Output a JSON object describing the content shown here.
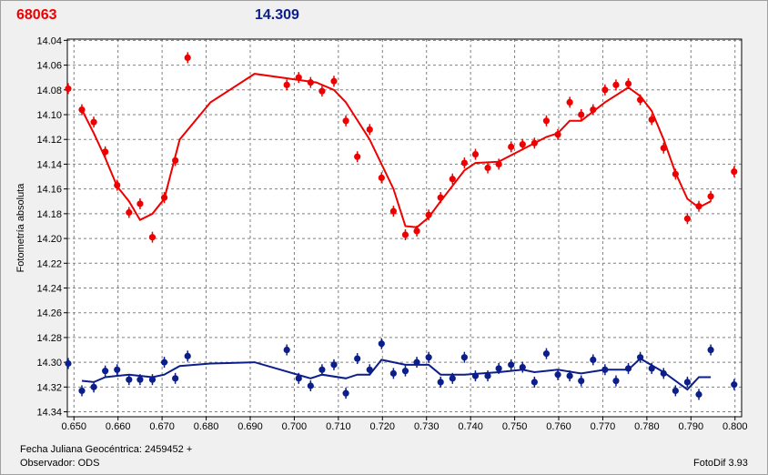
{
  "header": {
    "star_id": "68063",
    "magnitude": "14.309"
  },
  "footer": {
    "jd_label": "Fecha Juliana Geocéntrica: 2459452 +",
    "observer_label": "Observador: ODS",
    "software": "FotoDif 3.93"
  },
  "colors": {
    "red": "#ee0000",
    "blue": "#0b1e8a",
    "grid": "#808080",
    "plot_bg": "#ffffff"
  },
  "chart_data": {
    "type": "scatter",
    "ylabel": "Fotometría absoluta",
    "xlabel": "",
    "xlim": [
      0.6485,
      0.8015
    ],
    "ylim": [
      14.344,
      14.039
    ],
    "y_reversed": true,
    "grid": true,
    "x_ticks": [
      "0.650",
      "0.660",
      "0.670",
      "0.680",
      "0.690",
      "0.700",
      "0.710",
      "0.720",
      "0.730",
      "0.740",
      "0.750",
      "0.760",
      "0.770",
      "0.780",
      "0.790",
      "0.800"
    ],
    "y_ticks": [
      "14.04",
      "14.06",
      "14.08",
      "14.10",
      "14.12",
      "14.14",
      "14.16",
      "14.18",
      "14.20",
      "14.22",
      "14.24",
      "14.26",
      "14.28",
      "14.30",
      "14.32",
      "14.34"
    ],
    "series": [
      {
        "color": "#ee0000",
        "points": [
          [
            0.6487,
            14.079
          ],
          [
            0.6518,
            14.096
          ],
          [
            0.6545,
            14.106
          ],
          [
            0.6571,
            14.13
          ],
          [
            0.6598,
            14.157
          ],
          [
            0.6625,
            14.179
          ],
          [
            0.665,
            14.172
          ],
          [
            0.6678,
            14.199
          ],
          [
            0.6705,
            14.167
          ],
          [
            0.673,
            14.137
          ],
          [
            0.6758,
            14.054
          ],
          [
            0.6983,
            14.076
          ],
          [
            0.701,
            14.07
          ],
          [
            0.7037,
            14.074
          ],
          [
            0.7063,
            14.081
          ],
          [
            0.709,
            14.073
          ],
          [
            0.7117,
            14.105
          ],
          [
            0.7143,
            14.134
          ],
          [
            0.7171,
            14.112
          ],
          [
            0.7198,
            14.151
          ],
          [
            0.7225,
            14.178
          ],
          [
            0.7252,
            14.197
          ],
          [
            0.7278,
            14.194
          ],
          [
            0.7305,
            14.181
          ],
          [
            0.7332,
            14.167
          ],
          [
            0.7359,
            14.152
          ],
          [
            0.7386,
            14.139
          ],
          [
            0.7411,
            14.132
          ],
          [
            0.7439,
            14.143
          ],
          [
            0.7464,
            14.14
          ],
          [
            0.7492,
            14.126
          ],
          [
            0.7518,
            14.124
          ],
          [
            0.7545,
            14.123
          ],
          [
            0.7572,
            14.105
          ],
          [
            0.7598,
            14.116
          ],
          [
            0.7625,
            14.09
          ],
          [
            0.7651,
            14.1
          ],
          [
            0.7678,
            14.096
          ],
          [
            0.7705,
            14.08
          ],
          [
            0.773,
            14.076
          ],
          [
            0.7758,
            14.075
          ],
          [
            0.7785,
            14.088
          ],
          [
            0.7811,
            14.104
          ],
          [
            0.7838,
            14.127
          ],
          [
            0.7865,
            14.148
          ],
          [
            0.7892,
            14.184
          ],
          [
            0.7918,
            14.174
          ],
          [
            0.7945,
            14.166
          ],
          [
            0.7998,
            14.146
          ]
        ],
        "trend": [
          [
            0.6518,
            14.096
          ],
          [
            0.6545,
            14.115
          ],
          [
            0.6571,
            14.135
          ],
          [
            0.6598,
            14.158
          ],
          [
            0.6625,
            14.17
          ],
          [
            0.665,
            14.185
          ],
          [
            0.6678,
            14.18
          ],
          [
            0.6705,
            14.168
          ],
          [
            0.674,
            14.12
          ],
          [
            0.681,
            14.09
          ],
          [
            0.691,
            14.067
          ],
          [
            0.705,
            14.074
          ],
          [
            0.709,
            14.08
          ],
          [
            0.7117,
            14.09
          ],
          [
            0.7171,
            14.12
          ],
          [
            0.7225,
            14.16
          ],
          [
            0.7252,
            14.19
          ],
          [
            0.7278,
            14.191
          ],
          [
            0.7305,
            14.183
          ],
          [
            0.7332,
            14.17
          ],
          [
            0.7386,
            14.145
          ],
          [
            0.7411,
            14.139
          ],
          [
            0.7464,
            14.138
          ],
          [
            0.7518,
            14.128
          ],
          [
            0.7572,
            14.118
          ],
          [
            0.7598,
            14.115
          ],
          [
            0.7625,
            14.105
          ],
          [
            0.7651,
            14.105
          ],
          [
            0.7705,
            14.09
          ],
          [
            0.7758,
            14.078
          ],
          [
            0.7785,
            14.085
          ],
          [
            0.7811,
            14.097
          ],
          [
            0.7838,
            14.12
          ],
          [
            0.7865,
            14.147
          ],
          [
            0.7892,
            14.168
          ],
          [
            0.7918,
            14.175
          ],
          [
            0.7945,
            14.17
          ]
        ]
      },
      {
        "color": "#0b1e8a",
        "points": [
          [
            0.6487,
            14.301
          ],
          [
            0.6518,
            14.323
          ],
          [
            0.6545,
            14.32
          ],
          [
            0.6571,
            14.307
          ],
          [
            0.6598,
            14.306
          ],
          [
            0.6625,
            14.314
          ],
          [
            0.665,
            14.314
          ],
          [
            0.6678,
            14.314
          ],
          [
            0.6705,
            14.3
          ],
          [
            0.673,
            14.313
          ],
          [
            0.6758,
            14.295
          ],
          [
            0.6983,
            14.29
          ],
          [
            0.701,
            14.313
          ],
          [
            0.7037,
            14.319
          ],
          [
            0.7063,
            14.306
          ],
          [
            0.709,
            14.302
          ],
          [
            0.7117,
            14.325
          ],
          [
            0.7143,
            14.297
          ],
          [
            0.7171,
            14.306
          ],
          [
            0.7198,
            14.285
          ],
          [
            0.7225,
            14.309
          ],
          [
            0.7252,
            14.307
          ],
          [
            0.7278,
            14.3
          ],
          [
            0.7305,
            14.296
          ],
          [
            0.7332,
            14.316
          ],
          [
            0.7359,
            14.313
          ],
          [
            0.7386,
            14.296
          ],
          [
            0.7411,
            14.311
          ],
          [
            0.7439,
            14.311
          ],
          [
            0.7464,
            14.305
          ],
          [
            0.7492,
            14.302
          ],
          [
            0.7518,
            14.304
          ],
          [
            0.7545,
            14.316
          ],
          [
            0.7572,
            14.293
          ],
          [
            0.7598,
            14.31
          ],
          [
            0.7625,
            14.311
          ],
          [
            0.7651,
            14.315
          ],
          [
            0.7678,
            14.298
          ],
          [
            0.7705,
            14.306
          ],
          [
            0.773,
            14.315
          ],
          [
            0.7758,
            14.305
          ],
          [
            0.7785,
            14.296
          ],
          [
            0.7811,
            14.305
          ],
          [
            0.7838,
            14.309
          ],
          [
            0.7865,
            14.323
          ],
          [
            0.7892,
            14.316
          ],
          [
            0.7918,
            14.326
          ],
          [
            0.7945,
            14.29
          ],
          [
            0.7998,
            14.318
          ]
        ],
        "trend": [
          [
            0.6518,
            14.315
          ],
          [
            0.6545,
            14.316
          ],
          [
            0.6571,
            14.312
          ],
          [
            0.6625,
            14.31
          ],
          [
            0.6678,
            14.312
          ],
          [
            0.6705,
            14.31
          ],
          [
            0.674,
            14.303
          ],
          [
            0.681,
            14.301
          ],
          [
            0.691,
            14.3
          ],
          [
            0.7037,
            14.313
          ],
          [
            0.7063,
            14.31
          ],
          [
            0.7117,
            14.313
          ],
          [
            0.7143,
            14.31
          ],
          [
            0.7171,
            14.31
          ],
          [
            0.7198,
            14.298
          ],
          [
            0.7225,
            14.3
          ],
          [
            0.7252,
            14.302
          ],
          [
            0.7305,
            14.302
          ],
          [
            0.7332,
            14.31
          ],
          [
            0.7386,
            14.31
          ],
          [
            0.7464,
            14.308
          ],
          [
            0.7518,
            14.306
          ],
          [
            0.7545,
            14.308
          ],
          [
            0.7598,
            14.306
          ],
          [
            0.7651,
            14.309
          ],
          [
            0.7705,
            14.306
          ],
          [
            0.7758,
            14.306
          ],
          [
            0.7785,
            14.297
          ],
          [
            0.7838,
            14.308
          ],
          [
            0.7892,
            14.322
          ],
          [
            0.7918,
            14.312
          ],
          [
            0.7945,
            14.312
          ]
        ]
      }
    ]
  }
}
